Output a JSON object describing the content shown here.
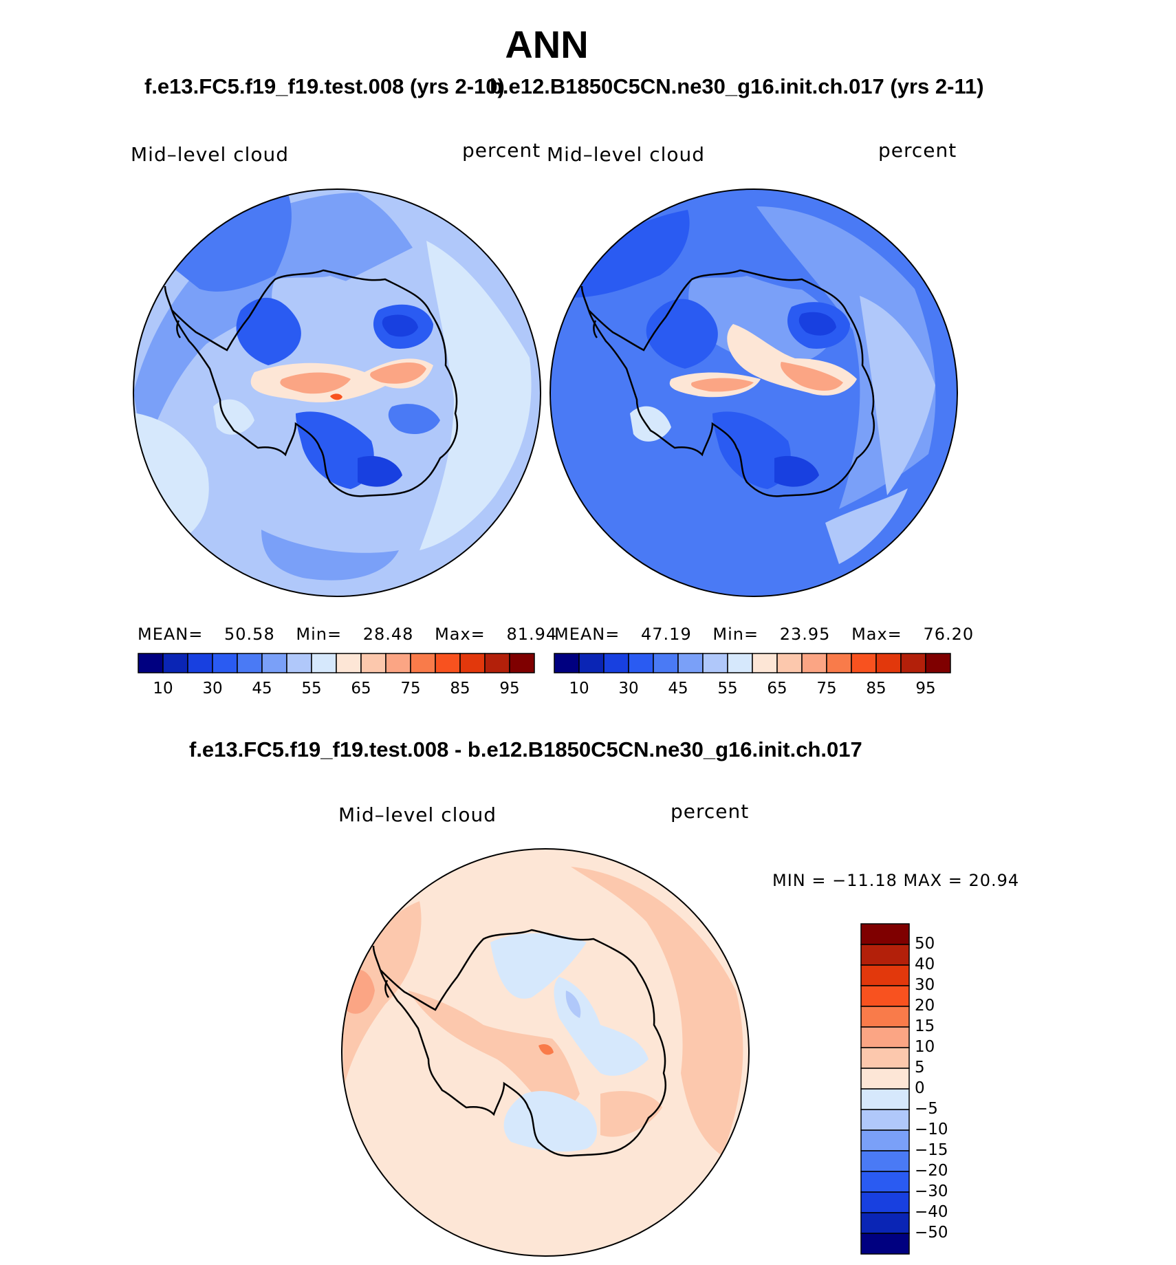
{
  "title": "ANN",
  "panels": [
    {
      "case": "f.e13.FC5.f19_f19.test.008 (yrs 2-10)",
      "variable": "Mid–level cloud",
      "units": "percent",
      "stats": {
        "mean_label": "MEAN=",
        "mean": "50.58",
        "min_label": "Min=",
        "min": "28.48",
        "max_label": "Max=",
        "max": "81.94"
      }
    },
    {
      "case": "b.e12.B1850C5CN.ne30_g16.init.ch.017 (yrs 2-11)",
      "variable": "Mid–level cloud",
      "units": "percent",
      "stats": {
        "mean_label": "MEAN=",
        "mean": "47.19",
        "min_label": "Min=",
        "min": "23.95",
        "max_label": "Max=",
        "max": "76.20"
      }
    }
  ],
  "diff_panel": {
    "title": "f.e13.FC5.f19_f19.test.008 - b.e12.B1850C5CN.ne30_g16.init.ch.017",
    "variable": "Mid–level cloud",
    "units": "percent",
    "stats_text": "MIN = −11.18 MAX =   20.94"
  },
  "abs_colorbar": {
    "colors": [
      "#000080",
      "#0a25b5",
      "#1840e0",
      "#2a5bf2",
      "#4a7af5",
      "#7aa0f8",
      "#b0c8fa",
      "#d6e8fc",
      "#fde6d6",
      "#fcc8ad",
      "#fba584",
      "#f97b4a",
      "#f8521f",
      "#e2380c",
      "#b3200a",
      "#7f0000"
    ],
    "tick_labels": [
      "10",
      "30",
      "45",
      "55",
      "65",
      "75",
      "85",
      "95"
    ]
  },
  "diff_colorbar": {
    "colors": [
      "#000080",
      "#0a25b5",
      "#1840e0",
      "#2a5bf2",
      "#4a7af5",
      "#7aa0f8",
      "#b0c8fa",
      "#d6e8fc",
      "#fde6d6",
      "#fcc8ad",
      "#fba584",
      "#f97b4a",
      "#f8521f",
      "#e2380c",
      "#b3200a",
      "#7f0000"
    ],
    "tick_labels": [
      "50",
      "40",
      "30",
      "20",
      "15",
      "10",
      "5",
      "0",
      "−5",
      "−10",
      "−15",
      "−20",
      "−30",
      "−40",
      "−50"
    ]
  }
}
